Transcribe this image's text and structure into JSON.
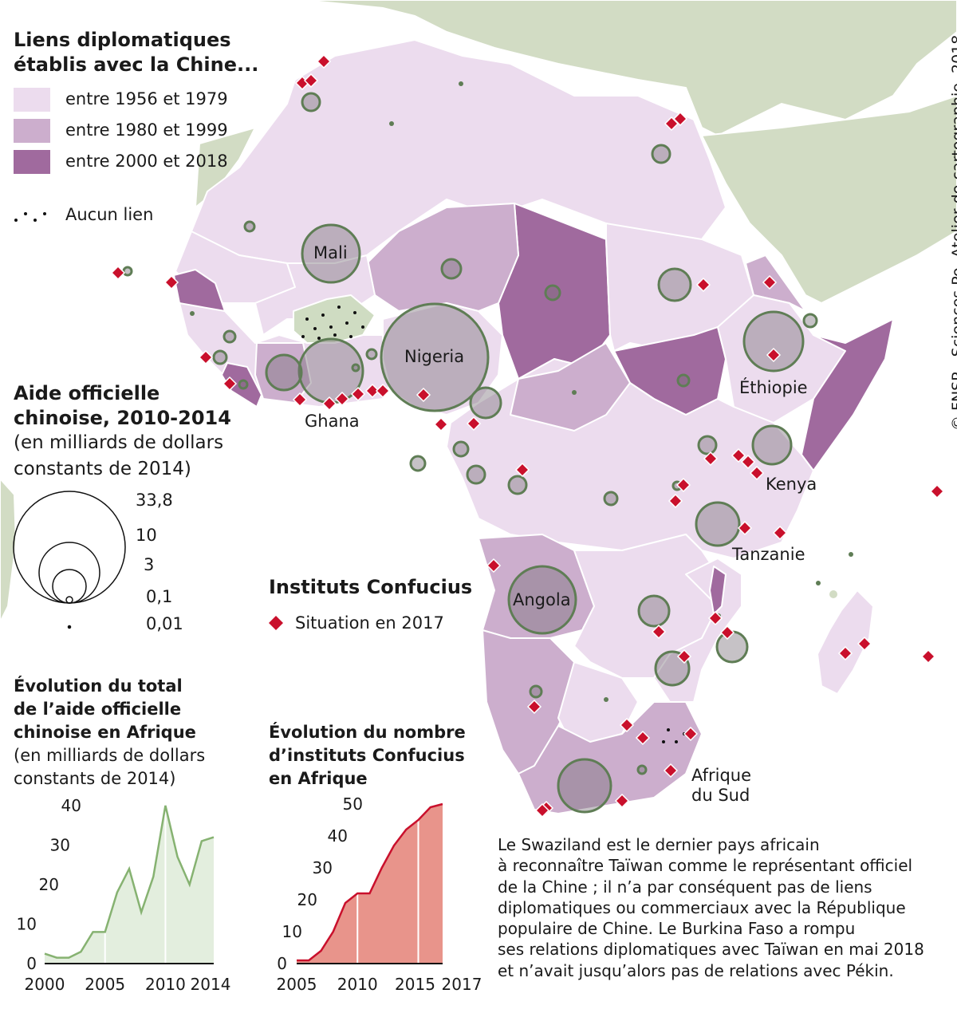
{
  "legend_links": {
    "title_line1": "Liens diplomatiques",
    "title_line2": "établis avec la Chine...",
    "items": [
      {
        "label": "entre 1956 et 1979",
        "color": "#ecdcee"
      },
      {
        "label": "entre 1980 et 1999",
        "color": "#ccaecd"
      },
      {
        "label": "entre 2000 et 2018",
        "color": "#a06a9e"
      }
    ],
    "none_label": "Aucun lien",
    "none_color": "#cfdcc2"
  },
  "legend_aid": {
    "title_line1": "Aide officielle",
    "title_line2": "chinoise, 2010-2014",
    "sub_line1": "(en milliards de dollars",
    "sub_line2": "constants de 2014)",
    "sizes": [
      "33,8",
      "10",
      "3",
      "0,1",
      "0,01"
    ]
  },
  "legend_confucius": {
    "title": "Instituts Confucius",
    "item": "Situation en 2017",
    "color": "#c9102c"
  },
  "countries": {
    "mali": "Mali",
    "nigeria": "Nigeria",
    "ghana": "Ghana",
    "ethiopie": "Éthiopie",
    "kenya": "Kenya",
    "tanzanie": "Tanzanie",
    "angola": "Angola",
    "afrique_sud_1": "Afrique",
    "afrique_sud_2": "du Sud"
  },
  "chart_aid_title": {
    "line1": "Évolution du total",
    "line2": "de l’aide officielle",
    "line3": "chinoise en Afrique",
    "sub1": "(en milliards de dollars",
    "sub2": "constants de 2014)"
  },
  "chart_conf_title": {
    "line1": "Évolution du nombre",
    "line2": "d’instituts Confucius",
    "line3": "en Afrique"
  },
  "note": "Le Swaziland est le dernier pays africain\nà reconnaître Taïwan comme le représentant officiel\nde la Chine ; il n’a par conséquent pas de liens\ndiplomatiques ou commerciaux avec la République\npopulaire de Chine. Le Burkina Faso a rompu\nses relations diplomatiques avec Taïwan en mai 2018\net n’avait jusqu’alors pas de relations avec Pékin.",
  "credit": "© FNSP - Sciences Po, Atelier de cartographie, 2018",
  "chart_data": [
    {
      "type": "area",
      "title": "Évolution du total de l’aide officielle chinoise en Afrique",
      "ylabel": "(en milliards de dollars constants de 2014)",
      "x": [
        2000,
        2001,
        2002,
        2003,
        2004,
        2005,
        2006,
        2007,
        2008,
        2009,
        2010,
        2011,
        2012,
        2013,
        2014
      ],
      "values": [
        2.5,
        1.5,
        1.5,
        3,
        8,
        8,
        18,
        24,
        13,
        22,
        40,
        27,
        20,
        31,
        32
      ],
      "x_ticks": [
        "2000",
        "2005",
        "2010",
        "2014"
      ],
      "y_ticks": [
        "0",
        "10",
        "20",
        "30",
        "40"
      ],
      "ylim": [
        0,
        42
      ],
      "color": "#e3eede",
      "line_color": "#86b271"
    },
    {
      "type": "area",
      "title": "Évolution du nombre d’instituts Confucius en Afrique",
      "x": [
        2005,
        2006,
        2007,
        2008,
        2009,
        2010,
        2011,
        2012,
        2013,
        2014,
        2015,
        2016,
        2017
      ],
      "values": [
        1,
        1,
        4,
        10,
        19,
        22,
        22,
        30,
        37,
        42,
        45,
        49,
        50
      ],
      "x_ticks": [
        "2005",
        "2010",
        "2015",
        "2017"
      ],
      "y_ticks": [
        "0",
        "10",
        "20",
        "30",
        "40",
        "50"
      ],
      "ylim": [
        0,
        52
      ],
      "color": "#e8948b",
      "line_color": "#c9102c"
    }
  ]
}
